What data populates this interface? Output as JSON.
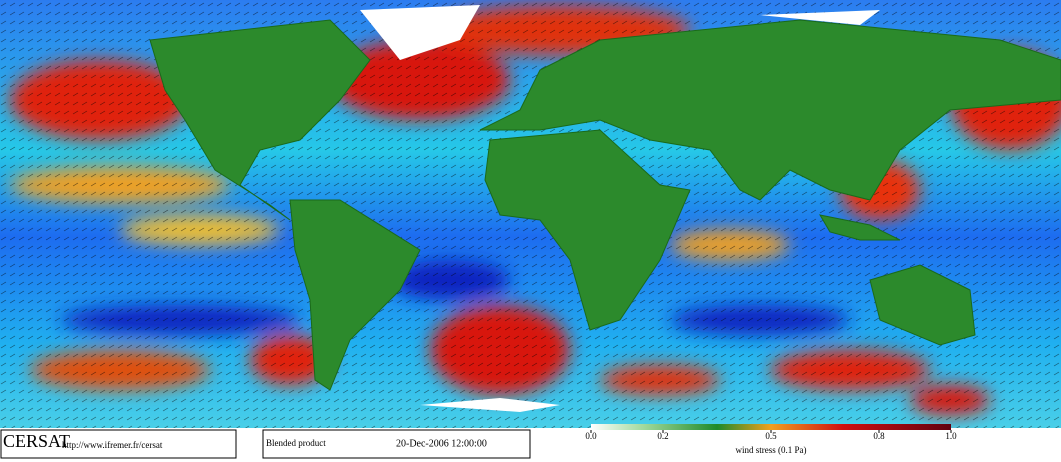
{
  "footer": {
    "logo": "CERSAT",
    "url": "http://www.ifremer.fr/cersat",
    "product": "Blended product",
    "date": "20-Dec-2006 12:00:00"
  },
  "colorbar": {
    "label": "wind stress (0.1 Pa)",
    "range": [
      0,
      1
    ],
    "ticks": [
      {
        "value": 0,
        "label": "0.0"
      },
      {
        "value": 0.2,
        "label": "0.2"
      },
      {
        "value": 0.5,
        "label": "0.5"
      },
      {
        "value": 0.8,
        "label": "0.8"
      },
      {
        "value": 1,
        "label": "1.0"
      }
    ]
  }
}
